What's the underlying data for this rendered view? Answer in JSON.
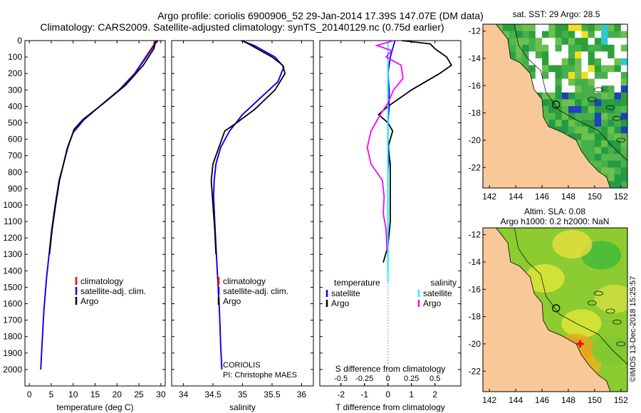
{
  "header": {
    "line1": "Argo profile: coriolis 6900906_52 29-Jan-2014 17.39S 147.07E (DM data)",
    "line2": "Climatology: CARS2009. Satellite-adjusted climatology: synTS_20140129.nc (0.75d earlier)"
  },
  "colors": {
    "climatology": "#ff0000",
    "satellite": "#0000ff",
    "argo": "#000000",
    "salinity_diff": "#00ffff",
    "argo_s_diff": "#ff00ff",
    "land": "#f8c898",
    "sst_ocean": "#3cb043"
  },
  "chart_data": [
    {
      "type": "line",
      "id": "temperature",
      "xlabel": "temperature (deg C)",
      "ylabel": "",
      "xlim": [
        -1,
        31
      ],
      "ylim": [
        2100,
        0
      ],
      "xticks": [
        0,
        5,
        10,
        15,
        20,
        25,
        30
      ],
      "yticks": [
        0,
        100,
        200,
        300,
        400,
        500,
        600,
        700,
        800,
        900,
        1000,
        1100,
        1200,
        1300,
        1400,
        1500,
        1600,
        1700,
        1800,
        1900,
        2000
      ],
      "legend": [
        "climatology",
        "satellite-adj. clim.",
        "Argo"
      ],
      "series": [
        {
          "name": "climatology",
          "x": [
            28.5,
            28.4,
            26.5,
            24,
            20.5,
            16,
            12.5,
            10,
            8.7,
            7.8,
            6.8,
            5.9,
            5.1,
            4.5,
            3.9,
            3.3,
            2.9,
            2.6
          ],
          "y": [
            0,
            25,
            100,
            200,
            300,
            400,
            480,
            560,
            650,
            750,
            850,
            1000,
            1150,
            1300,
            1450,
            1650,
            1850,
            2000
          ]
        },
        {
          "name": "satellite-adj. clim.",
          "x": [
            28.8,
            28.6,
            26.7,
            24.1,
            20.5,
            16,
            12.5,
            10,
            8.7,
            7.8,
            6.8,
            5.9,
            5.1,
            4.5,
            3.9,
            3.3,
            2.9,
            2.6
          ],
          "y": [
            0,
            25,
            100,
            200,
            300,
            400,
            480,
            560,
            650,
            750,
            850,
            1000,
            1150,
            1300,
            1450,
            1650,
            1850,
            2000
          ]
        },
        {
          "name": "Argo",
          "x": [
            29.3,
            28.7,
            28.4,
            26,
            22,
            17,
            12.2,
            10.2,
            8.8,
            7.8,
            6.9,
            6,
            5.2,
            4.6
          ],
          "y": [
            0,
            20,
            50,
            150,
            270,
            380,
            480,
            540,
            650,
            750,
            850,
            1000,
            1150,
            1300
          ]
        }
      ]
    },
    {
      "type": "line",
      "id": "salinity",
      "xlabel": "salinity",
      "xlim": [
        33.8,
        36.2
      ],
      "ylim": [
        2100,
        0
      ],
      "xticks": [
        34,
        34.5,
        35,
        35.5,
        36
      ],
      "legend": [
        "climatology",
        "satellite-adj. clim.",
        "Argo"
      ],
      "series": [
        {
          "name": "climatology",
          "x": [
            34.98,
            35.2,
            35.55,
            35.7,
            35.6,
            35.3,
            35.0,
            34.78,
            34.63,
            34.55,
            34.52,
            34.51,
            34.53,
            34.55,
            34.58,
            34.61,
            34.63,
            34.65
          ],
          "y": [
            0,
            30,
            100,
            160,
            250,
            350,
            450,
            550,
            650,
            750,
            850,
            950,
            1100,
            1250,
            1450,
            1650,
            1850,
            2000
          ]
        },
        {
          "name": "satellite-adj. clim.",
          "x": [
            34.98,
            35.2,
            35.55,
            35.7,
            35.6,
            35.3,
            35.0,
            34.78,
            34.63,
            34.55,
            34.52,
            34.51,
            34.53,
            34.55,
            34.58,
            34.61,
            34.63,
            34.65
          ],
          "y": [
            0,
            30,
            100,
            160,
            250,
            350,
            450,
            550,
            650,
            750,
            850,
            950,
            1100,
            1250,
            1450,
            1650,
            1850,
            2000
          ]
        },
        {
          "name": "Argo",
          "x": [
            35.0,
            35.2,
            35.5,
            35.68,
            35.72,
            35.55,
            35.2,
            34.9,
            34.7,
            34.6,
            34.5,
            34.47,
            34.48,
            34.5,
            34.53,
            34.55
          ],
          "y": [
            0,
            40,
            100,
            150,
            200,
            300,
            420,
            500,
            550,
            650,
            750,
            850,
            900,
            1000,
            1150,
            1300
          ]
        }
      ]
    },
    {
      "type": "line",
      "id": "difference",
      "xlabel": "T difference from climatology",
      "xlabel_top": "S difference from climatology",
      "xlim": [
        -2.9,
        3.1
      ],
      "ylim": [
        2100,
        0
      ],
      "xticks": [
        -2,
        -1,
        0,
        1,
        2
      ],
      "top_xticks": [
        "-0.5",
        "-0.25",
        "0",
        "0.25",
        "0.5"
      ],
      "top_xtick_values": [
        -0.5,
        -0.25,
        0,
        0.25,
        0.5
      ],
      "s_scale": 0.25,
      "legend_left_title": "temperature",
      "legend_right_title": "salinity",
      "legend_left": [
        "satellite",
        "Argo"
      ],
      "legend_right": [
        "satellite",
        "Argo"
      ],
      "series": [
        {
          "name": "T satellite",
          "x": [
            0.3,
            0.2,
            0.1,
            0.0,
            0.05,
            0.05,
            0.0,
            0.0,
            0.05,
            0.0,
            0.0,
            0.0,
            0.0,
            0.0
          ],
          "y": [
            0,
            50,
            100,
            200,
            300,
            400,
            500,
            600,
            700,
            800,
            900,
            1000,
            1200,
            1400
          ]
        },
        {
          "name": "T Argo",
          "x": [
            0.6,
            1.8,
            2.0,
            2.5,
            2.7,
            2.2,
            1.0,
            0.0,
            -0.4,
            0.0,
            0.2,
            0.0,
            0.1,
            0.1,
            0.1,
            0.0,
            -0.2
          ],
          "y": [
            0,
            20,
            50,
            100,
            150,
            200,
            300,
            400,
            450,
            500,
            550,
            650,
            750,
            900,
            1100,
            1250,
            1350
          ]
        },
        {
          "name": "S satellite",
          "x": [
            0,
            0,
            0,
            0,
            0,
            0,
            0,
            0,
            0,
            0,
            0,
            0,
            0,
            0,
            0,
            0
          ],
          "y": [
            0,
            100,
            200,
            300,
            400,
            500,
            600,
            700,
            800,
            900,
            1000,
            1100,
            1200,
            1300,
            1400,
            1470
          ]
        },
        {
          "name": "S Argo",
          "x": [
            0.06,
            -0.12,
            0.04,
            -0.02,
            0.14,
            0.16,
            0.06,
            0,
            -0.08,
            -0.18,
            -0.22,
            -0.18,
            -0.06,
            -0.04,
            -0.05,
            -0.02,
            -0.01
          ],
          "y": [
            0,
            30,
            60,
            100,
            150,
            230,
            300,
            380,
            450,
            550,
            650,
            750,
            850,
            950,
            1050,
            1150,
            1280
          ]
        }
      ]
    },
    {
      "type": "heatmap",
      "id": "sst_map",
      "title": "sat. SST: 29 Argo: 28.5",
      "xlim": [
        141.5,
        152.5
      ],
      "ylim": [
        -23.5,
        -11.5
      ],
      "xticks": [
        142,
        144,
        146,
        148,
        150,
        152
      ],
      "yticks": [
        -12,
        -14,
        -16,
        -18,
        -20,
        -22
      ],
      "argo_position": [
        147.07,
        -17.39
      ]
    },
    {
      "type": "heatmap",
      "id": "sla_map",
      "title": "Altim. SLA: 0.08",
      "subtitle": "Argo h1000: 0.2 h2000: NaN",
      "xlim": [
        141.5,
        152.5
      ],
      "ylim": [
        -23.5,
        -11.5
      ],
      "xticks": [
        142,
        144,
        146,
        148,
        150,
        152
      ],
      "yticks": [
        -12,
        -14,
        -16,
        -18,
        -20,
        -22
      ],
      "argo_position": [
        147.07,
        -17.39
      ],
      "watermark": "©IMOS 13-Dec-2018 15:25:57"
    }
  ],
  "annotations": {
    "source": "CORIOLIS",
    "pi": "PI: Christophe MAES"
  }
}
